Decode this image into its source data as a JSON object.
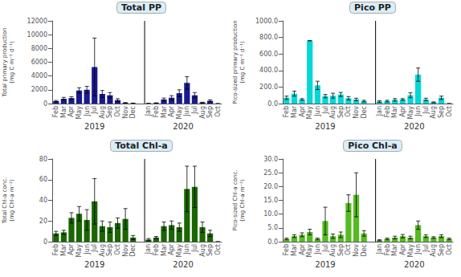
{
  "chart_data": [
    {
      "type": "bar",
      "title": "Total PP",
      "ylabel": "Total primary production\n(mg C m⁻² d⁻¹)",
      "categories": [
        "Feb",
        "Mar",
        "Apr",
        "May",
        "Jun",
        "Jul",
        "Aug",
        "Sep",
        "Oct",
        "Nov",
        "Dec",
        null,
        "Jan",
        "Feb",
        "Mar",
        "Apr",
        "May",
        "Jun",
        "Jul",
        "Aug",
        "Sep",
        "Oct"
      ],
      "values": [
        350,
        700,
        800,
        1900,
        2000,
        5300,
        1400,
        1200,
        500,
        100,
        50,
        null,
        30,
        80,
        600,
        850,
        1500,
        3000,
        1200,
        150,
        400,
        0
      ],
      "errors": [
        100,
        200,
        200,
        400,
        500,
        4200,
        500,
        400,
        200,
        50,
        20,
        null,
        10,
        30,
        200,
        300,
        500,
        900,
        400,
        50,
        150,
        0
      ],
      "annotations": [
        "2019",
        "2020"
      ],
      "color": "#1a1a8c",
      "ylim": [
        0,
        12000
      ],
      "yticks": [
        0,
        2000,
        4000,
        6000,
        8000,
        10000,
        12000
      ],
      "grid": false
    },
    {
      "type": "bar",
      "title": "Pico PP",
      "ylabel": "Pico-sized primary production\n(mg C m⁻² d⁻¹)",
      "categories": [
        "Feb",
        "Mar",
        "Apr",
        "May",
        "Jun",
        "Jul",
        "Aug",
        "Sep",
        "Oct",
        "Nov",
        "Dec",
        null,
        "Jan",
        "Feb",
        "Mar",
        "Apr",
        "May",
        "Jun",
        "Jul",
        "Aug",
        "Sep",
        "Oct"
      ],
      "values": [
        70,
        120,
        50,
        760,
        220,
        90,
        95,
        110,
        65,
        50,
        30,
        null,
        25,
        30,
        45,
        50,
        100,
        350,
        50,
        15,
        70,
        0
      ],
      "errors": [
        20,
        30,
        10,
        0,
        50,
        20,
        30,
        25,
        20,
        15,
        10,
        null,
        10,
        10,
        15,
        10,
        30,
        80,
        15,
        5,
        20,
        0
      ],
      "annotations": [
        "2019",
        "2020"
      ],
      "color": "#00d8d8",
      "ylim": [
        0,
        1000
      ],
      "yticks": [
        {
          "value": 0,
          "label": "0.0"
        },
        {
          "value": 200,
          "label": "200.0"
        },
        {
          "value": 400,
          "label": "400.0"
        },
        {
          "value": 600,
          "label": "600.0"
        },
        {
          "value": 800,
          "label": "800.0"
        },
        {
          "value": 1000,
          "label": "1000.0"
        }
      ],
      "grid": false
    },
    {
      "type": "bar",
      "title": "Total Chl-a",
      "ylabel": "Total Chl-a conc.\n(mg Chl-a m⁻²)",
      "categories": [
        "Feb",
        "Mar",
        "Apr",
        "May",
        "Jun",
        "Jul",
        "Aug",
        "Sep",
        "Oct",
        "Nov",
        "Dec",
        null,
        "Jan",
        "Feb",
        "Mar",
        "Apr",
        "May",
        "Jun",
        "Jul",
        "Aug",
        "Sep",
        "Oct"
      ],
      "values": [
        8,
        9,
        23,
        27,
        21,
        39,
        15,
        14,
        18,
        22,
        4,
        null,
        2,
        4,
        15,
        16,
        14,
        51,
        53,
        14,
        8,
        0
      ],
      "errors": [
        2,
        2,
        5,
        7,
        10,
        22,
        5,
        5,
        5,
        10,
        2,
        null,
        1,
        1,
        4,
        4,
        4,
        22,
        20,
        5,
        3,
        0
      ],
      "annotations": [
        "2019",
        "2020"
      ],
      "color": "#1a6600",
      "ylim": [
        0,
        80
      ],
      "yticks": [
        0,
        20,
        40,
        60,
        80
      ],
      "grid": false
    },
    {
      "type": "bar",
      "title": "Pico Chl-a",
      "ylabel": "Pico-sized Chl-a conc.\n(mg Chl-a m⁻²)",
      "categories": [
        "Feb",
        "Mar",
        "Apr",
        "May",
        "Jun",
        "Jul",
        "Aug",
        "Sep",
        "Oct",
        "Nov",
        "Dec",
        null,
        "Jan",
        "Feb",
        "Mar",
        "Apr",
        "May",
        "Jun",
        "Jul",
        "Aug",
        "Sep",
        "Oct"
      ],
      "values": [
        1.0,
        2.0,
        2.5,
        3.5,
        1.0,
        7.5,
        2.0,
        2.5,
        14.0,
        17.0,
        3.0,
        null,
        0.5,
        1.0,
        1.5,
        2.0,
        1.5,
        6.0,
        2.0,
        1.5,
        2.0,
        1.0
      ],
      "errors": [
        0.3,
        0.5,
        0.7,
        1.0,
        0.3,
        5.0,
        0.8,
        1.0,
        3.0,
        8.0,
        1.0,
        null,
        0.2,
        0.3,
        0.5,
        0.6,
        0.5,
        1.5,
        0.5,
        0.3,
        0.5,
        0.3
      ],
      "annotations": [
        "2019",
        "2020"
      ],
      "color": "#55bb22",
      "ylim": [
        0,
        30
      ],
      "yticks": [
        {
          "value": 0,
          "label": "0.0"
        },
        {
          "value": 5,
          "label": "5.0"
        },
        {
          "value": 10,
          "label": "10.0"
        },
        {
          "value": 15,
          "label": "15.0"
        },
        {
          "value": 20,
          "label": "20.0"
        },
        {
          "value": 25,
          "label": "25.0"
        },
        {
          "value": 30,
          "label": "30.0"
        }
      ],
      "grid": false
    }
  ]
}
